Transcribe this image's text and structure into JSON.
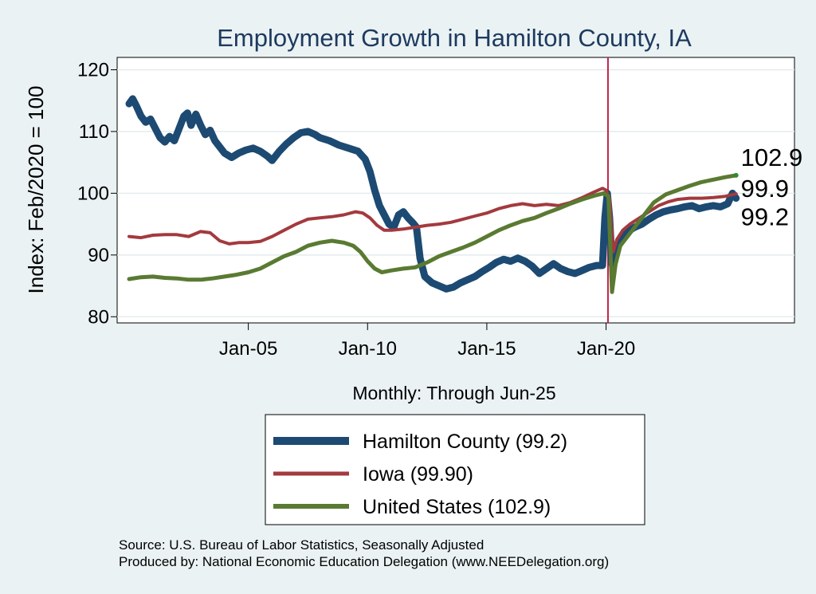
{
  "chart_data": {
    "type": "line",
    "title": "Employment Growth in Hamilton  County, IA",
    "xlabel": "Monthly: Through Jun-25",
    "ylabel": "Index: Feb/2020 = 100",
    "ylim": [
      79,
      122
    ],
    "xlim": [
      1999.5,
      2027.9
    ],
    "yticks": [
      80,
      90,
      100,
      110,
      120
    ],
    "xticks": [
      {
        "label": "Jan-05",
        "value": 2005
      },
      {
        "label": "Jan-10",
        "value": 2010
      },
      {
        "label": "Jan-15",
        "value": 2015
      },
      {
        "label": "Jan-20",
        "value": 2020
      }
    ],
    "reference_line": {
      "x": 2020.08,
      "color": "#c0244a"
    },
    "series": [
      {
        "name": "Hamilton  County",
        "legend": "Hamilton  County (99.2)",
        "color": "#1c4a72",
        "end_label": "99.2",
        "points": [
          [
            2000.0,
            114.5
          ],
          [
            2000.15,
            115.3
          ],
          [
            2000.3,
            114.2
          ],
          [
            2000.5,
            112.5
          ],
          [
            2000.7,
            111.5
          ],
          [
            2000.9,
            112.0
          ],
          [
            2001.1,
            110.5
          ],
          [
            2001.3,
            109.0
          ],
          [
            2001.5,
            108.3
          ],
          [
            2001.7,
            109.2
          ],
          [
            2001.9,
            108.5
          ],
          [
            2002.1,
            110.5
          ],
          [
            2002.3,
            112.5
          ],
          [
            2002.45,
            113.0
          ],
          [
            2002.6,
            111.0
          ],
          [
            2002.8,
            112.8
          ],
          [
            2003.0,
            111.0
          ],
          [
            2003.2,
            109.5
          ],
          [
            2003.4,
            110.2
          ],
          [
            2003.6,
            108.5
          ],
          [
            2003.8,
            107.5
          ],
          [
            2004.0,
            106.5
          ],
          [
            2004.3,
            105.8
          ],
          [
            2004.6,
            106.5
          ],
          [
            2004.9,
            107.0
          ],
          [
            2005.2,
            107.3
          ],
          [
            2005.5,
            106.8
          ],
          [
            2005.8,
            106.0
          ],
          [
            2006.0,
            105.3
          ],
          [
            2006.3,
            106.8
          ],
          [
            2006.6,
            108.0
          ],
          [
            2006.9,
            109.0
          ],
          [
            2007.2,
            109.8
          ],
          [
            2007.5,
            110.0
          ],
          [
            2007.8,
            109.5
          ],
          [
            2008.0,
            109.0
          ],
          [
            2008.4,
            108.5
          ],
          [
            2008.8,
            107.8
          ],
          [
            2009.2,
            107.3
          ],
          [
            2009.6,
            106.8
          ],
          [
            2009.9,
            105.5
          ],
          [
            2010.1,
            103.5
          ],
          [
            2010.3,
            100.5
          ],
          [
            2010.5,
            98.0
          ],
          [
            2010.7,
            96.5
          ],
          [
            2010.9,
            95.0
          ],
          [
            2011.1,
            94.5
          ],
          [
            2011.3,
            96.5
          ],
          [
            2011.5,
            97.0
          ],
          [
            2011.7,
            96.0
          ],
          [
            2011.9,
            95.2
          ],
          [
            2012.05,
            94.5
          ],
          [
            2012.2,
            89.5
          ],
          [
            2012.4,
            86.5
          ],
          [
            2012.7,
            85.5
          ],
          [
            2013.0,
            85.0
          ],
          [
            2013.3,
            84.5
          ],
          [
            2013.6,
            84.8
          ],
          [
            2013.9,
            85.5
          ],
          [
            2014.2,
            86.0
          ],
          [
            2014.5,
            86.5
          ],
          [
            2014.8,
            87.3
          ],
          [
            2015.1,
            88.0
          ],
          [
            2015.4,
            88.8
          ],
          [
            2015.7,
            89.3
          ],
          [
            2016.0,
            89.0
          ],
          [
            2016.3,
            89.5
          ],
          [
            2016.6,
            89.0
          ],
          [
            2016.9,
            88.2
          ],
          [
            2017.2,
            87.0
          ],
          [
            2017.5,
            87.8
          ],
          [
            2017.8,
            88.6
          ],
          [
            2018.1,
            87.8
          ],
          [
            2018.4,
            87.3
          ],
          [
            2018.7,
            87.0
          ],
          [
            2019.0,
            87.5
          ],
          [
            2019.3,
            88.0
          ],
          [
            2019.6,
            88.3
          ],
          [
            2019.85,
            88.3
          ],
          [
            2019.95,
            96.0
          ],
          [
            2020.05,
            100.0
          ],
          [
            2020.15,
            96.0
          ],
          [
            2020.25,
            88.5
          ],
          [
            2020.4,
            90.0
          ],
          [
            2020.6,
            92.5
          ],
          [
            2020.9,
            93.8
          ],
          [
            2021.2,
            94.5
          ],
          [
            2021.5,
            95.0
          ],
          [
            2021.8,
            95.8
          ],
          [
            2022.1,
            96.5
          ],
          [
            2022.4,
            97.0
          ],
          [
            2022.7,
            97.3
          ],
          [
            2023.0,
            97.5
          ],
          [
            2023.3,
            97.8
          ],
          [
            2023.6,
            98.0
          ],
          [
            2023.9,
            97.5
          ],
          [
            2024.2,
            97.8
          ],
          [
            2024.5,
            98.0
          ],
          [
            2024.8,
            97.8
          ],
          [
            2025.1,
            98.3
          ],
          [
            2025.3,
            100.0
          ],
          [
            2025.45,
            99.2
          ]
        ]
      },
      {
        "name": "Iowa",
        "legend": "Iowa (99.90)",
        "color": "#a33a3e",
        "end_label": "99.9",
        "points": [
          [
            2000.0,
            93.0
          ],
          [
            2000.5,
            92.8
          ],
          [
            2001.0,
            93.2
          ],
          [
            2001.5,
            93.3
          ],
          [
            2002.0,
            93.3
          ],
          [
            2002.5,
            93.0
          ],
          [
            2003.0,
            93.8
          ],
          [
            2003.4,
            93.6
          ],
          [
            2003.8,
            92.3
          ],
          [
            2004.2,
            91.8
          ],
          [
            2004.6,
            92.0
          ],
          [
            2005.0,
            92.0
          ],
          [
            2005.5,
            92.2
          ],
          [
            2006.0,
            93.0
          ],
          [
            2006.5,
            94.0
          ],
          [
            2007.0,
            95.0
          ],
          [
            2007.5,
            95.8
          ],
          [
            2008.0,
            96.0
          ],
          [
            2008.5,
            96.2
          ],
          [
            2009.0,
            96.5
          ],
          [
            2009.5,
            97.0
          ],
          [
            2009.8,
            96.8
          ],
          [
            2010.1,
            96.0
          ],
          [
            2010.4,
            94.8
          ],
          [
            2010.7,
            94.0
          ],
          [
            2011.0,
            94.0
          ],
          [
            2011.5,
            94.2
          ],
          [
            2012.0,
            94.5
          ],
          [
            2012.5,
            94.8
          ],
          [
            2013.0,
            95.0
          ],
          [
            2013.5,
            95.3
          ],
          [
            2014.0,
            95.8
          ],
          [
            2014.5,
            96.3
          ],
          [
            2015.0,
            96.8
          ],
          [
            2015.5,
            97.5
          ],
          [
            2016.0,
            98.0
          ],
          [
            2016.5,
            98.3
          ],
          [
            2017.0,
            98.0
          ],
          [
            2017.5,
            98.2
          ],
          [
            2018.0,
            98.0
          ],
          [
            2018.5,
            98.5
          ],
          [
            2019.0,
            99.3
          ],
          [
            2019.5,
            100.2
          ],
          [
            2019.85,
            100.8
          ],
          [
            2020.0,
            100.5
          ],
          [
            2020.15,
            99.0
          ],
          [
            2020.3,
            90.5
          ],
          [
            2020.45,
            92.5
          ],
          [
            2020.7,
            94.0
          ],
          [
            2021.0,
            95.0
          ],
          [
            2021.4,
            96.0
          ],
          [
            2021.8,
            97.0
          ],
          [
            2022.2,
            98.0
          ],
          [
            2022.6,
            98.6
          ],
          [
            2023.0,
            99.0
          ],
          [
            2023.5,
            99.2
          ],
          [
            2024.0,
            99.2
          ],
          [
            2024.5,
            99.3
          ],
          [
            2025.0,
            99.5
          ],
          [
            2025.45,
            99.9
          ]
        ]
      },
      {
        "name": "United States",
        "legend": "United States (102.9)",
        "color": "#5a7a32",
        "end_label": "102.9",
        "points": [
          [
            2000.0,
            86.1
          ],
          [
            2000.5,
            86.4
          ],
          [
            2001.0,
            86.5
          ],
          [
            2001.5,
            86.3
          ],
          [
            2002.0,
            86.2
          ],
          [
            2002.5,
            86.0
          ],
          [
            2003.0,
            86.0
          ],
          [
            2003.5,
            86.2
          ],
          [
            2004.0,
            86.5
          ],
          [
            2004.5,
            86.8
          ],
          [
            2005.0,
            87.2
          ],
          [
            2005.5,
            87.8
          ],
          [
            2006.0,
            88.8
          ],
          [
            2006.5,
            89.8
          ],
          [
            2007.0,
            90.5
          ],
          [
            2007.5,
            91.5
          ],
          [
            2008.0,
            92.0
          ],
          [
            2008.5,
            92.3
          ],
          [
            2009.0,
            92.0
          ],
          [
            2009.4,
            91.5
          ],
          [
            2009.7,
            90.5
          ],
          [
            2010.0,
            89.0
          ],
          [
            2010.3,
            87.8
          ],
          [
            2010.6,
            87.2
          ],
          [
            2011.0,
            87.5
          ],
          [
            2011.5,
            87.8
          ],
          [
            2012.0,
            88.0
          ],
          [
            2012.5,
            88.8
          ],
          [
            2013.0,
            89.8
          ],
          [
            2013.5,
            90.5
          ],
          [
            2014.0,
            91.2
          ],
          [
            2014.5,
            92.0
          ],
          [
            2015.0,
            93.0
          ],
          [
            2015.5,
            94.0
          ],
          [
            2016.0,
            94.8
          ],
          [
            2016.5,
            95.5
          ],
          [
            2017.0,
            96.0
          ],
          [
            2017.5,
            96.8
          ],
          [
            2018.0,
            97.5
          ],
          [
            2018.5,
            98.3
          ],
          [
            2019.0,
            99.0
          ],
          [
            2019.5,
            99.6
          ],
          [
            2019.9,
            100.0
          ],
          [
            2020.1,
            99.5
          ],
          [
            2020.25,
            84.0
          ],
          [
            2020.4,
            88.5
          ],
          [
            2020.6,
            91.5
          ],
          [
            2020.9,
            93.0
          ],
          [
            2021.2,
            94.5
          ],
          [
            2021.6,
            96.5
          ],
          [
            2022.0,
            98.5
          ],
          [
            2022.5,
            99.8
          ],
          [
            2023.0,
            100.5
          ],
          [
            2023.5,
            101.2
          ],
          [
            2024.0,
            101.8
          ],
          [
            2024.5,
            102.2
          ],
          [
            2025.0,
            102.6
          ],
          [
            2025.45,
            102.9
          ]
        ]
      }
    ]
  },
  "source_lines": [
    "Source: U.S. Bureau of Labor Statistics, Seasonally Adjusted",
    "Produced by: National Economic Education Delegation (www.NEEDelegation.org)"
  ]
}
